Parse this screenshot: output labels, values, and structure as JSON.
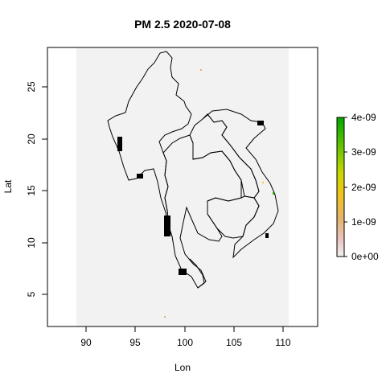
{
  "chart_data": {
    "type": "heatmap",
    "title": "PM 2.5 2020-07-08",
    "xlabel": "Lon",
    "ylabel": "Lat",
    "xlim": [
      86.5,
      113.5
    ],
    "ylim": [
      1.8,
      28.9
    ],
    "x_ticks": [
      "90",
      "95",
      "100",
      "105",
      "110"
    ],
    "y_ticks": [
      "5",
      "10",
      "15",
      "20",
      "25"
    ],
    "raster_extent": {
      "lon": [
        89.3,
        110.4
      ],
      "lat": [
        1.8,
        28.9
      ]
    },
    "raster_fill_color": "#f2f2f2",
    "colorbar": {
      "ticks": [
        "0e+00",
        "1e-09",
        "2e-09",
        "3e-09",
        "4e-09"
      ],
      "range": [
        0,
        4e-09
      ],
      "colors": [
        "#f2f2f2",
        "#ecc3c1",
        "#e4b36e",
        "#eec51a",
        "#c9d800",
        "#6ac400",
        "#1c9f00",
        "#00a600"
      ]
    },
    "borders": "country-outlines-mainland-southeast-asia",
    "grid": false
  }
}
